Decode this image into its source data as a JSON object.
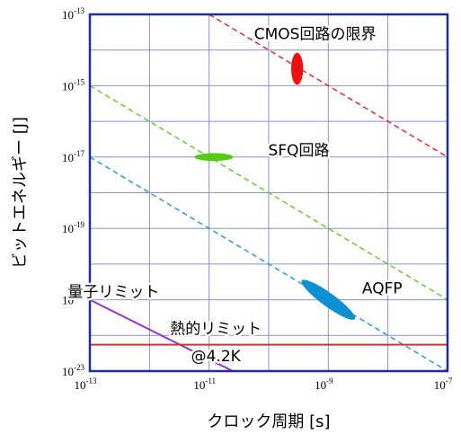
{
  "chart_data": {
    "type": "scatter",
    "xlabel": "クロック周期 [s]",
    "ylabel": "ビットエネルギー [J]",
    "xscale": "log",
    "yscale": "log",
    "xlim": [
      1e-13,
      1e-07
    ],
    "ylim": [
      1e-23,
      1e-13
    ],
    "grid": true,
    "x_ticks": [
      {
        "base": "10",
        "exp": "-13",
        "value": 1e-13
      },
      {
        "base": "10",
        "exp": "-11",
        "value": 1e-11
      },
      {
        "base": "10",
        "exp": "-9",
        "value": 1e-09
      },
      {
        "base": "10",
        "exp": "-7",
        "value": 1e-07
      }
    ],
    "y_ticks": [
      {
        "base": "10",
        "exp": "-13",
        "value": 1e-13
      },
      {
        "base": "10",
        "exp": "-15",
        "value": 1e-15
      },
      {
        "base": "10",
        "exp": "-17",
        "value": 1e-17
      },
      {
        "base": "10",
        "exp": "-19",
        "value": 1e-19
      },
      {
        "base": "10",
        "exp": "-21",
        "value": 1e-21
      },
      {
        "base": "10",
        "exp": "-23",
        "value": 1e-23
      }
    ],
    "dashed_lines": [
      {
        "color": "#e8283c",
        "x": [
          1e-11,
          1e-07
        ],
        "y": [
          1e-13,
          1e-17
        ]
      },
      {
        "color": "#66cc33",
        "x": [
          1e-13,
          1e-07
        ],
        "y": [
          1e-15,
          1e-21
        ]
      },
      {
        "color": "#3399cc",
        "x": [
          1e-13,
          1e-07
        ],
        "y": [
          1e-17,
          1e-23
        ]
      }
    ],
    "solid_lines": [
      {
        "color": "#9933cc",
        "x": [
          1e-13,
          2.5e-11
        ],
        "y": [
          1e-21,
          1e-23
        ]
      },
      {
        "color": "#cc3333",
        "x": [
          1e-13,
          1e-07
        ],
        "y": [
          5.5e-23,
          5.5e-23
        ]
      }
    ],
    "regions": [
      {
        "label": "CMOS回路の限界",
        "color": "#ee1111",
        "x": 3e-10,
        "y": 3e-15,
        "wdec": 0.2,
        "hdec": 0.9,
        "angle": 0
      },
      {
        "label": "SFQ回路",
        "color": "#55cc11",
        "x": 1.2e-11,
        "y": 1e-17,
        "wdec": 0.65,
        "hdec": 0.22,
        "angle": 0
      },
      {
        "label": "AQFP",
        "color": "#0d8fd3",
        "x": 1e-09,
        "y": 1e-21,
        "wdec": 1.1,
        "hdec": 0.38,
        "angle": 36
      }
    ],
    "annotations": [
      {
        "text": "CMOS回路の限界",
        "x": 6e-10,
        "y": 2e-14
      },
      {
        "text": "SFQ回路",
        "x": 3.2e-10,
        "y": 1.1e-17
      },
      {
        "text": "AQFP",
        "x": 8e-09,
        "y": 1.5e-21
      },
      {
        "text": "量子リミット",
        "x": 2.5e-13,
        "y": 1.2e-21
      },
      {
        "text": "熱的リミット",
        "x": 1.3e-11,
        "y": 1.1e-22
      },
      {
        "text": "@4.2K",
        "x": 1.3e-11,
        "y": 1.9e-23
      }
    ]
  }
}
